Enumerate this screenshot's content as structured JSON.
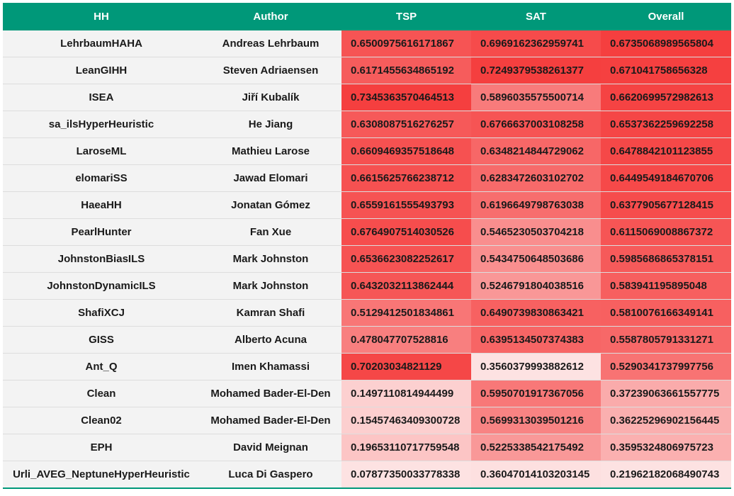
{
  "table": {
    "headers": [
      "HH",
      "Author",
      "TSP",
      "SAT",
      "Overall"
    ],
    "rows": [
      {
        "hh": "LehrbaumHAHA",
        "author": "Andreas Lehrbaum",
        "tsp": "0.6500975616171867",
        "sat": "0.6969162362959741",
        "overall": "0.6735068989565804"
      },
      {
        "hh": "LeanGIHH",
        "author": "Steven Adriaensen",
        "tsp": "0.6171455634865192",
        "sat": "0.7249379538261377",
        "overall": "0.671041758656328"
      },
      {
        "hh": "ISEA",
        "author": "Jiří Kubalík",
        "tsp": "0.7345363570464513",
        "sat": "0.5896035575500714",
        "overall": "0.6620699572982613"
      },
      {
        "hh": "sa_ilsHyperHeuristic",
        "author": "He Jiang",
        "tsp": "0.6308087516276257",
        "sat": "0.6766637003108258",
        "overall": "0.6537362259692258"
      },
      {
        "hh": "LaroseML",
        "author": "Mathieu Larose",
        "tsp": "0.6609469357518648",
        "sat": "0.6348214844729062",
        "overall": "0.6478842101123855"
      },
      {
        "hh": "elomariSS",
        "author": "Jawad Elomari",
        "tsp": "0.6615625766238712",
        "sat": "0.6283472603102702",
        "overall": "0.6449549184670706"
      },
      {
        "hh": "HaeaHH",
        "author": "Jonatan Gómez",
        "tsp": "0.6559161555493793",
        "sat": "0.6196649798763038",
        "overall": "0.6377905677128415"
      },
      {
        "hh": "PearlHunter",
        "author": "Fan Xue",
        "tsp": "0.6764907514030526",
        "sat": "0.5465230503704218",
        "overall": "0.6115069008867372"
      },
      {
        "hh": "JohnstonBiasILS",
        "author": "Mark Johnston",
        "tsp": "0.6536623082252617",
        "sat": "0.5434750648503686",
        "overall": "0.5985686865378151"
      },
      {
        "hh": "JohnstonDynamicILS",
        "author": "Mark Johnston",
        "tsp": "0.6432032113862444",
        "sat": "0.5246791804038516",
        "overall": "0.583941195895048"
      },
      {
        "hh": "ShafiXCJ",
        "author": "Kamran Shafi",
        "tsp": "0.5129412501834861",
        "sat": "0.6490739830863421",
        "overall": "0.5810076166349141"
      },
      {
        "hh": "GISS",
        "author": "Alberto Acuna",
        "tsp": "0.478047707528816",
        "sat": "0.6395134507374383",
        "overall": "0.5587805791331271"
      },
      {
        "hh": "Ant_Q",
        "author": "Imen Khamassi",
        "tsp": "0.70203034821129",
        "sat": "0.3560379993882612",
        "overall": "0.5290341737997756"
      },
      {
        "hh": "Clean",
        "author": "Mohamed Bader-El-Den",
        "tsp": "0.1497110814944499",
        "sat": "0.5950701917367056",
        "overall": "0.37239063661557775"
      },
      {
        "hh": "Clean02",
        "author": "Mohamed Bader-El-Den",
        "tsp": "0.15457463409300728",
        "sat": "0.5699313039501216",
        "overall": "0.36225296902156445"
      },
      {
        "hh": "EPH",
        "author": "David Meignan",
        "tsp": "0.19653110717759548",
        "sat": "0.5225338542175492",
        "overall": "0.3595324806975723"
      },
      {
        "hh": "Urli_AVEG_NeptuneHyperHeuristic",
        "author": "Luca Di Gaspero",
        "tsp": "0.07877350033778338",
        "sat": "0.36047014103203145",
        "overall": "0.21962182068490743"
      }
    ]
  },
  "colors": {
    "header_bg": "#009879",
    "header_text": "#ffffff",
    "text_cell_bg": "#f3f3f3",
    "heat_low": "#fde2e2",
    "heat_high": "#f53f3f"
  }
}
